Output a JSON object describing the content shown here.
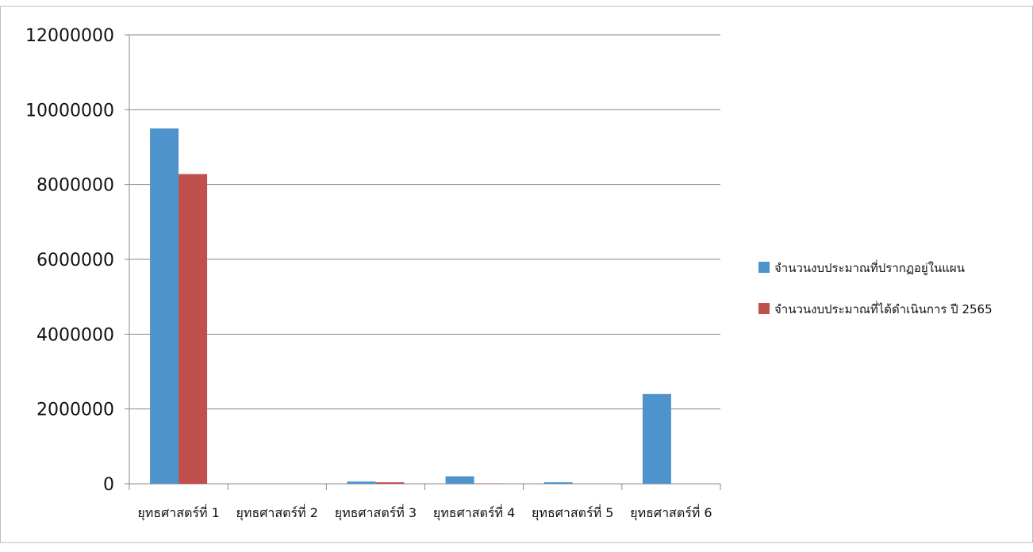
{
  "chart_data": {
    "type": "bar",
    "categories": [
      "ยุทธศาสตร์ที่ 1",
      "ยุทธศาสตร์ที่ 2",
      "ยุทธศาสตร์ที่ 3",
      "ยุทธศาสตร์ที่ 4",
      "ยุทธศาสตร์ที่ 5",
      "ยุทธศาสตร์ที่ 6"
    ],
    "series": [
      {
        "name": "จำนวนงบประมาณที่ปรากฏอยู่ในแผน",
        "color": "#4f93cc",
        "values": [
          9500000,
          0,
          60000,
          200000,
          40000,
          2400000
        ]
      },
      {
        "name": "จำนวนงบประมาณที่ได้ดำเนินการ ปี 2565",
        "color": "#c0504d",
        "values": [
          8280000,
          0,
          40000,
          10000,
          0,
          0
        ]
      }
    ],
    "ylim": [
      0,
      12000000
    ],
    "yticks": [
      "0",
      "2000000",
      "4000000",
      "6000000",
      "8000000",
      "10000000",
      "12000000"
    ],
    "grid": true,
    "legend_position": "right"
  }
}
